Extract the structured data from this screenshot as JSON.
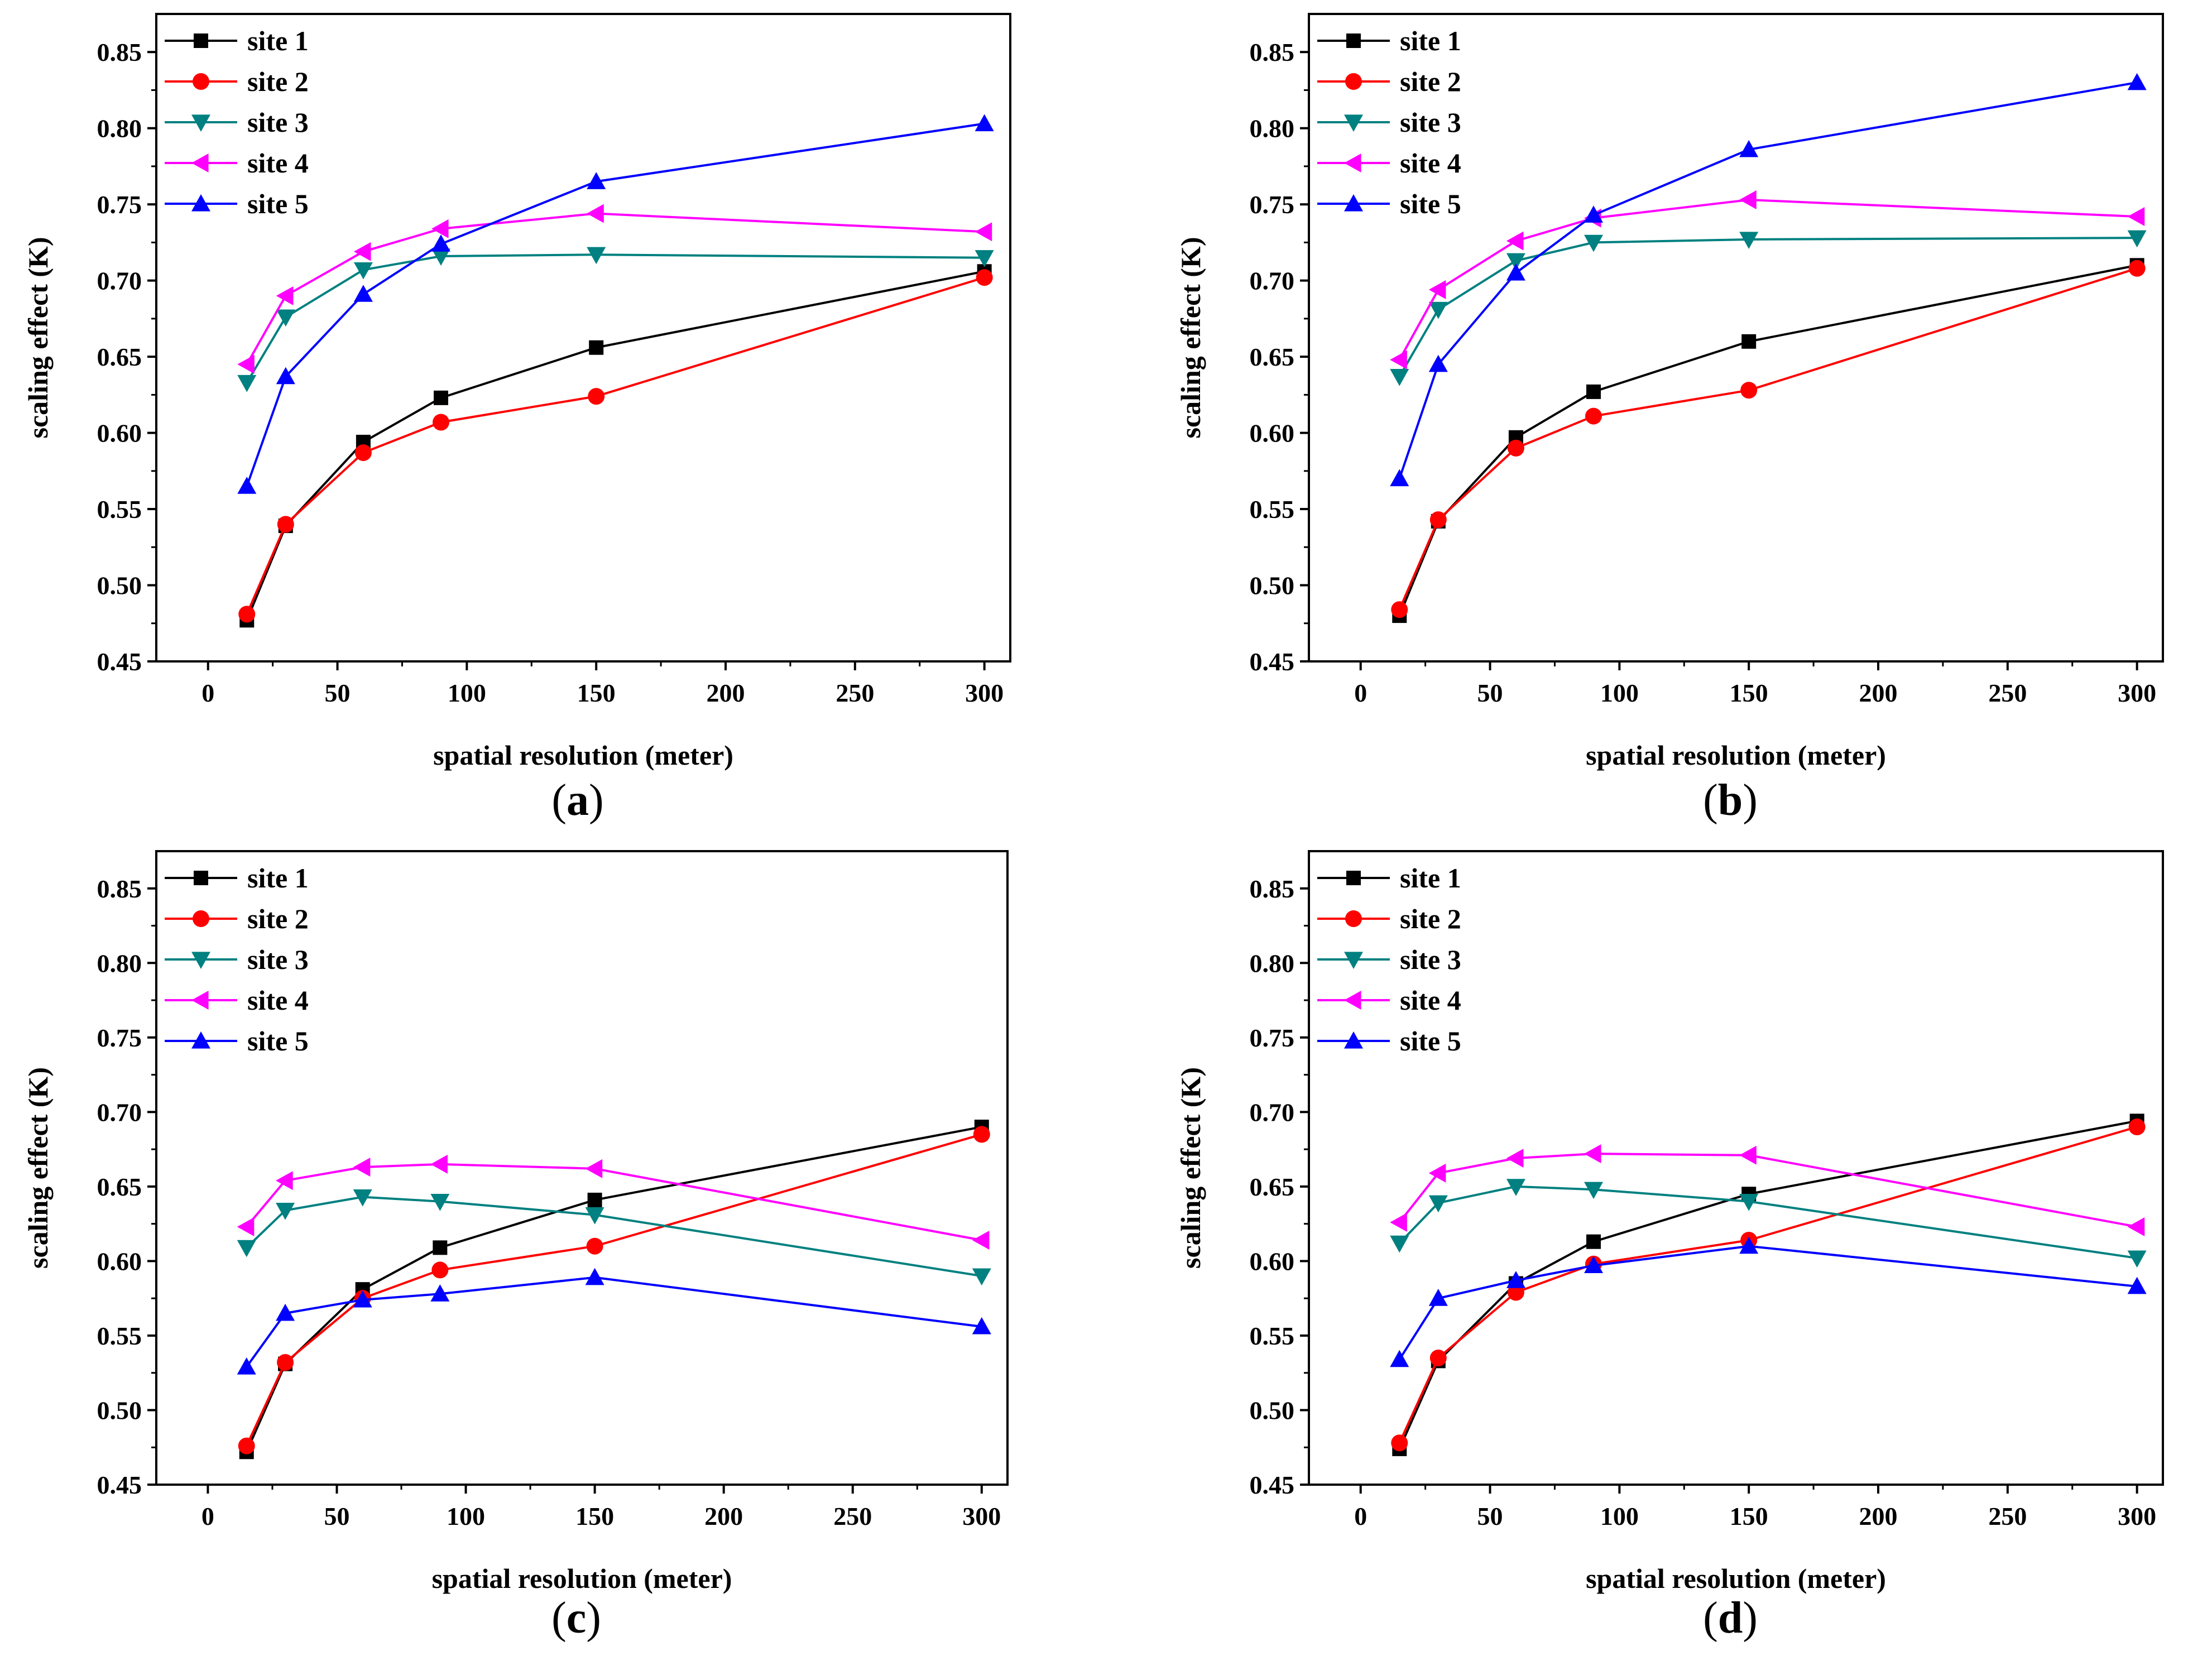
{
  "chart_data": [
    {
      "type": "line",
      "panel_label": "a",
      "xlabel": "spatial resolution (meter)",
      "ylabel": "scaling effect (K)",
      "xlim": [
        -20,
        310
      ],
      "ylim": [
        0.45,
        0.875
      ],
      "xticks": [
        0,
        50,
        100,
        150,
        200,
        250,
        300
      ],
      "yticks": [
        0.45,
        0.5,
        0.55,
        0.6,
        0.65,
        0.7,
        0.75,
        0.8,
        0.85
      ],
      "legend_position": "top-left",
      "x": [
        15,
        30,
        60,
        90,
        150,
        300
      ],
      "series": [
        {
          "name": "site 1",
          "color": "#000000",
          "marker": "square",
          "values": [
            0.477,
            0.539,
            0.594,
            0.623,
            0.656,
            0.706
          ]
        },
        {
          "name": "site 2",
          "color": "#ff0000",
          "marker": "circle",
          "values": [
            0.481,
            0.54,
            0.587,
            0.607,
            0.624,
            0.702
          ]
        },
        {
          "name": "site 3",
          "color": "#008080",
          "marker": "triangle-down",
          "values": [
            0.633,
            0.676,
            0.707,
            0.716,
            0.717,
            0.715
          ]
        },
        {
          "name": "site 4",
          "color": "#ff00ff",
          "marker": "triangle-left",
          "values": [
            0.645,
            0.69,
            0.719,
            0.734,
            0.744,
            0.732
          ]
        },
        {
          "name": "site 5",
          "color": "#0000ff",
          "marker": "triangle-up",
          "values": [
            0.565,
            0.637,
            0.691,
            0.724,
            0.765,
            0.803
          ]
        }
      ]
    },
    {
      "type": "line",
      "panel_label": "b",
      "xlabel": "spatial resolution (meter)",
      "ylabel": "scaling effect (K)",
      "xlim": [
        -20,
        310
      ],
      "ylim": [
        0.45,
        0.875
      ],
      "xticks": [
        0,
        50,
        100,
        150,
        200,
        250,
        300
      ],
      "yticks": [
        0.45,
        0.5,
        0.55,
        0.6,
        0.65,
        0.7,
        0.75,
        0.8,
        0.85
      ],
      "legend_position": "top-left",
      "x": [
        15,
        30,
        60,
        90,
        150,
        300
      ],
      "series": [
        {
          "name": "site 1",
          "color": "#000000",
          "marker": "square",
          "values": [
            0.48,
            0.542,
            0.597,
            0.627,
            0.66,
            0.71
          ]
        },
        {
          "name": "site 2",
          "color": "#ff0000",
          "marker": "circle",
          "values": [
            0.484,
            0.543,
            0.59,
            0.611,
            0.628,
            0.708
          ]
        },
        {
          "name": "site 3",
          "color": "#008080",
          "marker": "triangle-down",
          "values": [
            0.637,
            0.681,
            0.713,
            0.725,
            0.727,
            0.728
          ]
        },
        {
          "name": "site 4",
          "color": "#ff00ff",
          "marker": "triangle-left",
          "values": [
            0.648,
            0.694,
            0.726,
            0.741,
            0.753,
            0.742
          ]
        },
        {
          "name": "site 5",
          "color": "#0000ff",
          "marker": "triangle-up",
          "values": [
            0.57,
            0.645,
            0.705,
            0.743,
            0.786,
            0.83
          ]
        }
      ]
    },
    {
      "type": "line",
      "panel_label": "c",
      "xlabel": "spatial resolution (meter)",
      "ylabel": "scaling effect (K)",
      "xlim": [
        -20,
        310
      ],
      "ylim": [
        0.45,
        0.875
      ],
      "xticks": [
        0,
        50,
        100,
        150,
        200,
        250,
        300
      ],
      "yticks": [
        0.45,
        0.5,
        0.55,
        0.6,
        0.65,
        0.7,
        0.75,
        0.8,
        0.85
      ],
      "legend_position": "top-left",
      "x": [
        15,
        30,
        60,
        90,
        150,
        300
      ],
      "series": [
        {
          "name": "site 1",
          "color": "#000000",
          "marker": "square",
          "values": [
            0.472,
            0.531,
            0.581,
            0.609,
            0.641,
            0.69
          ]
        },
        {
          "name": "site 2",
          "color": "#ff0000",
          "marker": "circle",
          "values": [
            0.476,
            0.532,
            0.575,
            0.594,
            0.61,
            0.685
          ]
        },
        {
          "name": "site 3",
          "color": "#008080",
          "marker": "triangle-down",
          "values": [
            0.609,
            0.634,
            0.643,
            0.64,
            0.631,
            0.59
          ]
        },
        {
          "name": "site 4",
          "color": "#ff00ff",
          "marker": "triangle-left",
          "values": [
            0.623,
            0.654,
            0.663,
            0.665,
            0.662,
            0.614
          ]
        },
        {
          "name": "site 5",
          "color": "#0000ff",
          "marker": "triangle-up",
          "values": [
            0.529,
            0.565,
            0.574,
            0.578,
            0.589,
            0.556
          ]
        }
      ]
    },
    {
      "type": "line",
      "panel_label": "d",
      "xlabel": "spatial resolution (meter)",
      "ylabel": "scaling effect (K)",
      "xlim": [
        -20,
        310
      ],
      "ylim": [
        0.45,
        0.875
      ],
      "xticks": [
        0,
        50,
        100,
        150,
        200,
        250,
        300
      ],
      "yticks": [
        0.45,
        0.5,
        0.55,
        0.6,
        0.65,
        0.7,
        0.75,
        0.8,
        0.85
      ],
      "legend_position": "top-left",
      "x": [
        15,
        30,
        60,
        90,
        150,
        300
      ],
      "series": [
        {
          "name": "site 1",
          "color": "#000000",
          "marker": "square",
          "values": [
            0.474,
            0.533,
            0.585,
            0.613,
            0.645,
            0.694
          ]
        },
        {
          "name": "site 2",
          "color": "#ff0000",
          "marker": "circle",
          "values": [
            0.478,
            0.535,
            0.579,
            0.598,
            0.614,
            0.69
          ]
        },
        {
          "name": "site 3",
          "color": "#008080",
          "marker": "triangle-down",
          "values": [
            0.612,
            0.639,
            0.65,
            0.648,
            0.64,
            0.602
          ]
        },
        {
          "name": "site 4",
          "color": "#ff00ff",
          "marker": "triangle-left",
          "values": [
            0.626,
            0.659,
            0.669,
            0.672,
            0.671,
            0.623
          ]
        },
        {
          "name": "site 5",
          "color": "#0000ff",
          "marker": "triangle-up",
          "values": [
            0.534,
            0.575,
            0.587,
            0.597,
            0.61,
            0.583
          ]
        }
      ]
    }
  ]
}
